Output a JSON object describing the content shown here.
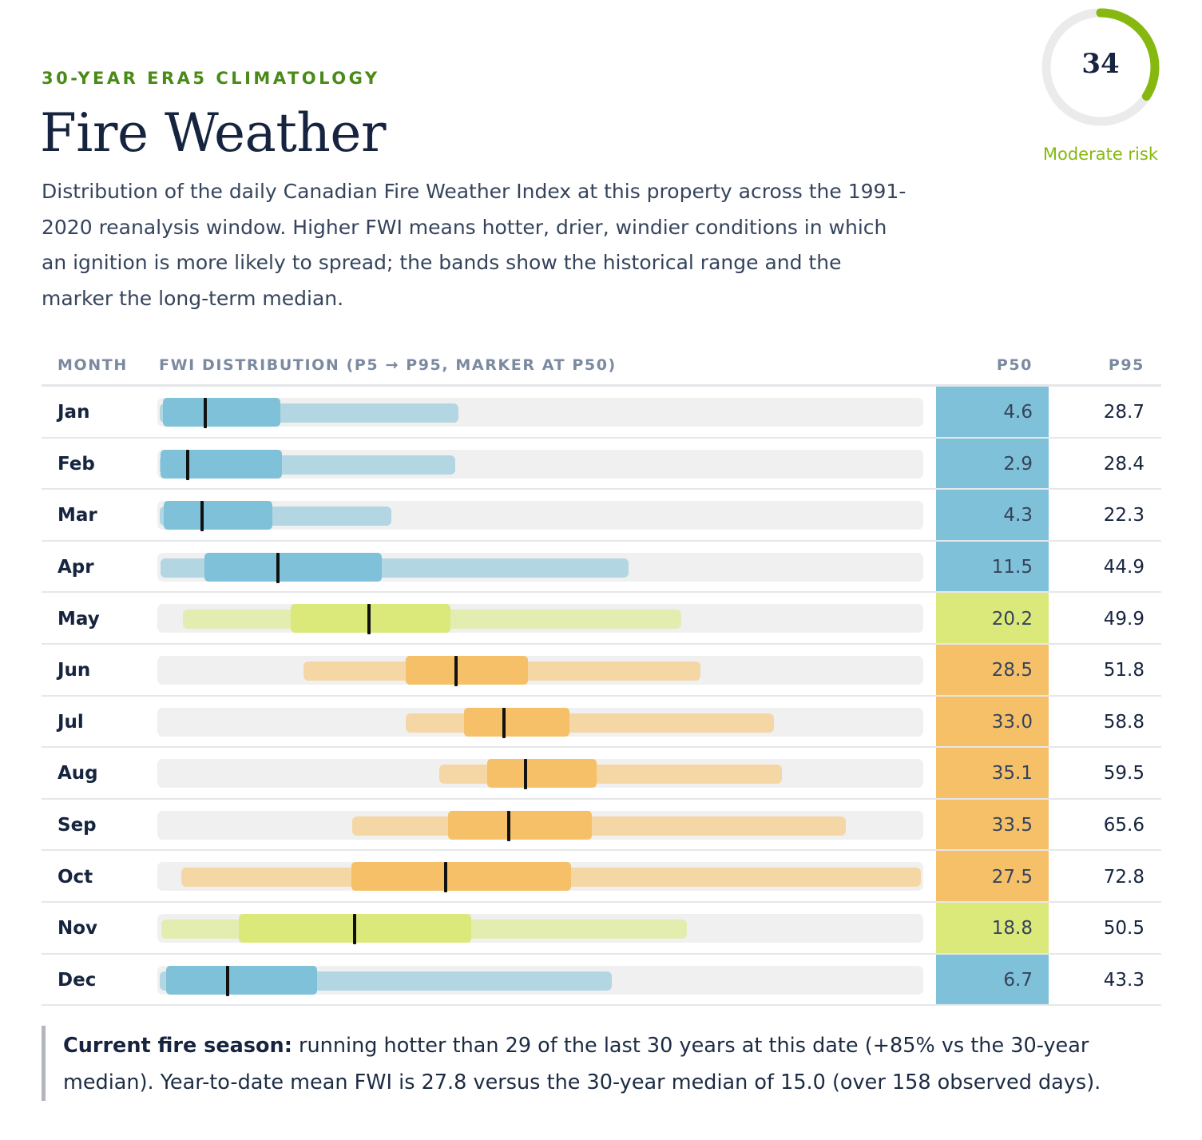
{
  "header": {
    "kicker": "30-YEAR ERA5 CLIMATOLOGY",
    "title": "Fire Weather",
    "description": "Distribution of the daily Canadian Fire Weather Index at this property across the 1991-2020 reanalysis window. Higher FWI means hotter, drier, windier conditions in which an ignition is more likely to spread; the bands show the historical range and the marker the long-term median."
  },
  "gauge": {
    "value": "34",
    "label": "Moderate risk",
    "fill_fraction": 0.34,
    "color": "#86b80f",
    "track_color": "#ebebeb"
  },
  "table": {
    "headers": {
      "month": "MONTH",
      "distribution": "FWI DISTRIBUTION (P5 → P95, MARKER AT P50)",
      "p50": "P50",
      "p95": "P95"
    }
  },
  "colors": {
    "low": {
      "box": "#7fc1d8",
      "whisker": "#b2d6e2",
      "cell": "#7fc1d8"
    },
    "moderate": {
      "box": "#dbe97a",
      "whisker": "#e3edb0",
      "cell": "#dbe97a"
    },
    "high": {
      "box": "#f5c067",
      "whisker": "#f5d7a6",
      "cell": "#f5c067"
    },
    "track": "#f0f0f0",
    "median": "#111111"
  },
  "chart_data": {
    "type": "box",
    "x_range": [
      0,
      73
    ],
    "categories": [
      "Jan",
      "Feb",
      "Mar",
      "Apr",
      "May",
      "Jun",
      "Jul",
      "Aug",
      "Sep",
      "Oct",
      "Nov",
      "Dec"
    ],
    "series": [
      {
        "month": "Jan",
        "p5": 0.2,
        "p25": 0.5,
        "p50": 4.6,
        "p75": 11.7,
        "p95": 28.7,
        "p50_label": "4.6",
        "p95_label": "28.7",
        "level": "low"
      },
      {
        "month": "Feb",
        "p5": 0.2,
        "p25": 0.3,
        "p50": 2.9,
        "p75": 11.9,
        "p95": 28.4,
        "p50_label": "2.9",
        "p95_label": "28.4",
        "level": "low"
      },
      {
        "month": "Mar",
        "p5": 0.2,
        "p25": 0.6,
        "p50": 4.3,
        "p75": 11.0,
        "p95": 22.3,
        "p50_label": "4.3",
        "p95_label": "22.3",
        "level": "low"
      },
      {
        "month": "Apr",
        "p5": 0.3,
        "p25": 4.5,
        "p50": 11.5,
        "p75": 21.4,
        "p95": 44.9,
        "p50_label": "11.5",
        "p95_label": "44.9",
        "level": "low"
      },
      {
        "month": "May",
        "p5": 2.4,
        "p25": 12.7,
        "p50": 20.2,
        "p75": 27.9,
        "p95": 49.9,
        "p50_label": "20.2",
        "p95_label": "49.9",
        "level": "moderate"
      },
      {
        "month": "Jun",
        "p5": 13.9,
        "p25": 23.7,
        "p50": 28.5,
        "p75": 35.3,
        "p95": 51.8,
        "p50_label": "28.5",
        "p95_label": "51.8",
        "level": "high"
      },
      {
        "month": "Jul",
        "p5": 23.7,
        "p25": 29.2,
        "p50": 33.0,
        "p75": 39.3,
        "p95": 58.8,
        "p50_label": "33.0",
        "p95_label": "58.8",
        "level": "high"
      },
      {
        "month": "Aug",
        "p5": 26.9,
        "p25": 31.4,
        "p50": 35.1,
        "p75": 41.9,
        "p95": 59.5,
        "p50_label": "35.1",
        "p95_label": "59.5",
        "level": "high"
      },
      {
        "month": "Sep",
        "p5": 18.6,
        "p25": 27.7,
        "p50": 33.5,
        "p75": 41.4,
        "p95": 65.6,
        "p50_label": "33.5",
        "p95_label": "65.6",
        "level": "high"
      },
      {
        "month": "Oct",
        "p5": 2.3,
        "p25": 18.5,
        "p50": 27.5,
        "p75": 39.4,
        "p95": 72.8,
        "p50_label": "27.5",
        "p95_label": "72.8",
        "level": "high"
      },
      {
        "month": "Nov",
        "p5": 0.4,
        "p25": 7.8,
        "p50": 18.8,
        "p75": 29.9,
        "p95": 50.5,
        "p50_label": "18.8",
        "p95_label": "50.5",
        "level": "moderate"
      },
      {
        "month": "Dec",
        "p5": 0.2,
        "p25": 0.8,
        "p50": 6.7,
        "p75": 15.2,
        "p95": 43.3,
        "p50_label": "6.7",
        "p95_label": "43.3",
        "level": "low"
      }
    ]
  },
  "note": {
    "lead": "Current fire season:",
    "text": " running hotter than 29 of the last 30 years at this date (+85% vs the 30-year median). Year-to-date mean FWI is 27.8 versus the 30-year median of 15.0 (over 158 observed days)."
  }
}
